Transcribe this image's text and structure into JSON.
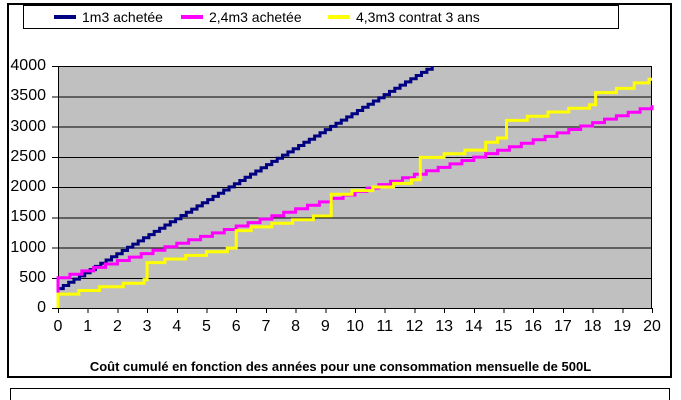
{
  "title": "Coût cumulé en fonction des années pour une consommation mensuelle de 500L",
  "legend": {
    "position": "top"
  },
  "colors": {
    "plot_background": "#C0C0C0",
    "grid": "#000000",
    "frame": "#000000",
    "page_background": "#FFFFFF"
  },
  "chart_data": {
    "type": "line",
    "title": "Coût cumulé en fonction des années pour une consommation mensuelle de 500L",
    "xlabel": "",
    "ylabel": "",
    "xlim": [
      0,
      20
    ],
    "ylim": [
      0,
      4000
    ],
    "x_ticks": [
      0,
      1,
      2,
      3,
      4,
      5,
      6,
      7,
      8,
      9,
      10,
      11,
      12,
      13,
      14,
      15,
      16,
      17,
      18,
      19,
      20
    ],
    "y_ticks": [
      0,
      500,
      1000,
      1500,
      2000,
      2500,
      3000,
      3500,
      4000
    ],
    "grid": "horizontal",
    "plot_bg": "#C0C0C0",
    "legend_position": "top",
    "series": [
      {
        "name": "1m3 achetée",
        "color": "#000080",
        "mode": "stairs",
        "stair_interval": 0.18,
        "extend_to_xmax": false,
        "points": [
          [
            0,
            0
          ],
          [
            0,
            320
          ],
          [
            12.6,
            4000
          ]
        ]
      },
      {
        "name": "2,4m3 achetée",
        "color": "#FF00FF",
        "mode": "step",
        "extend_to_xmax": true,
        "points": [
          [
            0,
            0
          ],
          [
            0,
            500
          ],
          [
            0.4,
            557
          ],
          [
            0.8,
            614
          ],
          [
            1.2,
            671
          ],
          [
            1.6,
            728
          ],
          [
            2,
            785
          ],
          [
            2.4,
            842
          ],
          [
            2.8,
            899
          ],
          [
            3.2,
            956
          ],
          [
            3.6,
            1013
          ],
          [
            4,
            1070
          ],
          [
            4.4,
            1127
          ],
          [
            4.8,
            1184
          ],
          [
            5.2,
            1241
          ],
          [
            5.6,
            1298
          ],
          [
            6,
            1355
          ],
          [
            6.4,
            1412
          ],
          [
            6.8,
            1469
          ],
          [
            7.2,
            1526
          ],
          [
            7.6,
            1583
          ],
          [
            8,
            1640
          ],
          [
            8.4,
            1697
          ],
          [
            8.8,
            1754
          ],
          [
            9.2,
            1811
          ],
          [
            9.6,
            1868
          ],
          [
            10,
            1925
          ],
          [
            10.4,
            1982
          ],
          [
            10.8,
            2039
          ],
          [
            11.2,
            2096
          ],
          [
            11.6,
            2153
          ],
          [
            12,
            2210
          ],
          [
            12.4,
            2267
          ],
          [
            12.8,
            2324
          ],
          [
            13.2,
            2381
          ],
          [
            13.6,
            2438
          ],
          [
            14,
            2495
          ],
          [
            14.4,
            2552
          ],
          [
            14.8,
            2609
          ],
          [
            15.2,
            2666
          ],
          [
            15.6,
            2723
          ],
          [
            16,
            2780
          ],
          [
            16.4,
            2837
          ],
          [
            16.8,
            2894
          ],
          [
            17.2,
            2951
          ],
          [
            17.6,
            3008
          ],
          [
            18,
            3065
          ],
          [
            18.4,
            3122
          ],
          [
            18.8,
            3179
          ],
          [
            19.2,
            3236
          ],
          [
            19.6,
            3293
          ],
          [
            20,
            3350
          ]
        ]
      },
      {
        "name": "4,3m3 contrat 3 ans",
        "color": "#FFFF00",
        "mode": "step",
        "extend_to_xmax": true,
        "points": [
          [
            0,
            0
          ],
          [
            0,
            230
          ],
          [
            0.7,
            290
          ],
          [
            1.4,
            350
          ],
          [
            2.2,
            410
          ],
          [
            2.9,
            470
          ],
          [
            3,
            750
          ],
          [
            3.6,
            810
          ],
          [
            4.3,
            870
          ],
          [
            5,
            930
          ],
          [
            5.7,
            990
          ],
          [
            6,
            1280
          ],
          [
            6.5,
            1340
          ],
          [
            7.2,
            1400
          ],
          [
            7.9,
            1460
          ],
          [
            8.6,
            1520
          ],
          [
            9.2,
            1880
          ],
          [
            9.9,
            1940
          ],
          [
            10.6,
            2000
          ],
          [
            11.3,
            2060
          ],
          [
            11.9,
            2120
          ],
          [
            12.2,
            2490
          ],
          [
            13,
            2550
          ],
          [
            13.7,
            2610
          ],
          [
            14.4,
            2740
          ],
          [
            14.8,
            2810
          ],
          [
            15.1,
            3100
          ],
          [
            15.8,
            3170
          ],
          [
            16.5,
            3240
          ],
          [
            17.2,
            3300
          ],
          [
            17.9,
            3360
          ],
          [
            18.1,
            3560
          ],
          [
            18.8,
            3630
          ],
          [
            19.4,
            3720
          ],
          [
            19.9,
            3780
          ]
        ]
      }
    ]
  }
}
